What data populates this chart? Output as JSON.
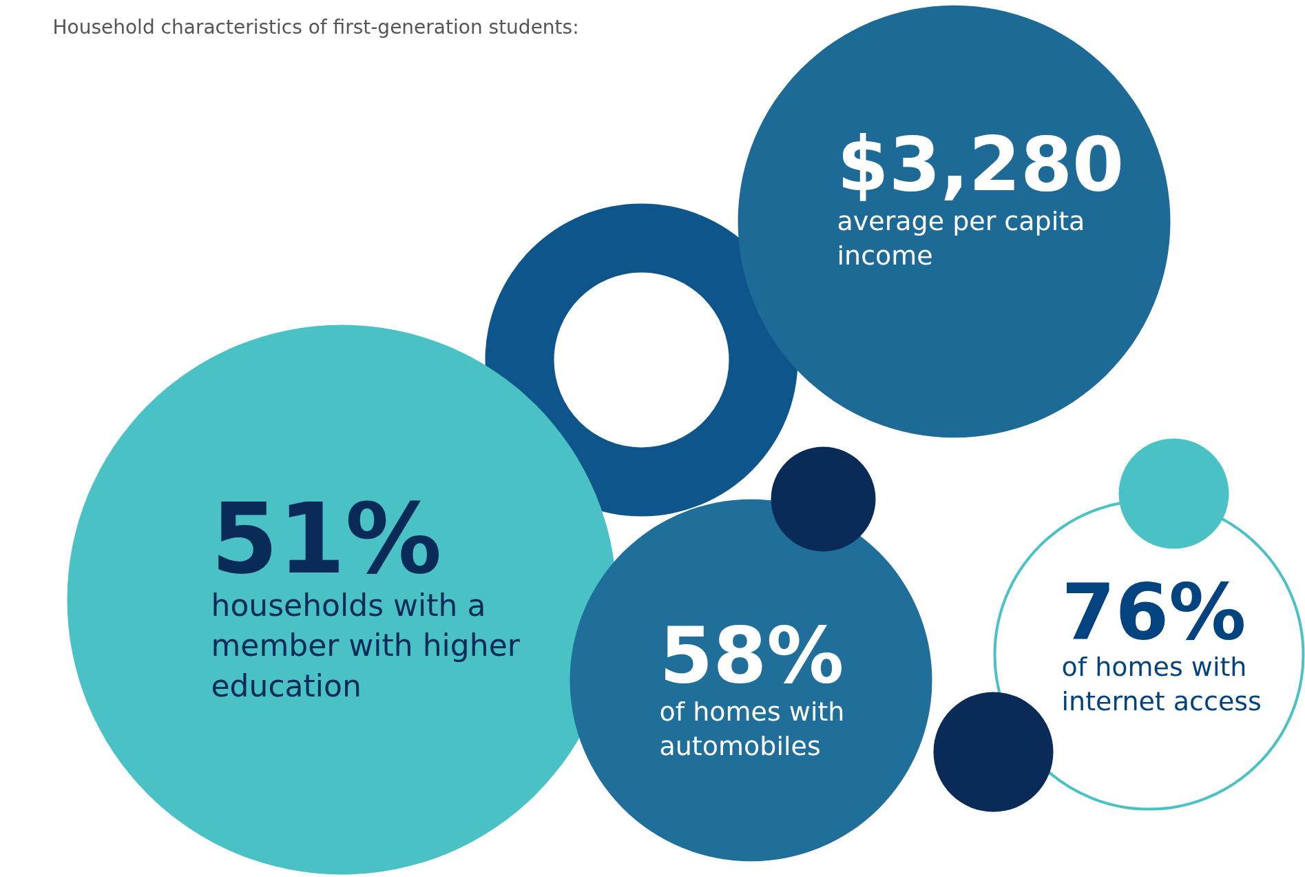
{
  "chart_data": {
    "type": "other",
    "title": "Household characteristics of first-generation students:",
    "categories": [
      "average per capita income",
      "households with a member with higher education",
      "of homes with automobiles",
      "of homes with internet access"
    ],
    "values": [
      3280,
      51,
      58,
      76
    ],
    "value_labels": [
      "$3,280",
      "51%",
      "58%",
      "76%"
    ],
    "colors": [
      "#1d6a96",
      "#49c1c5",
      "#1f6f9a",
      "#49c1c5"
    ]
  }
}
